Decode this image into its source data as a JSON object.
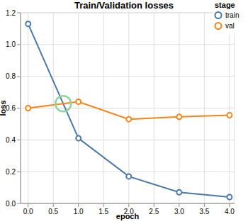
{
  "chart_data": {
    "type": "line",
    "title": "Train/Validation losses",
    "x_label": "epoch",
    "y_label": "loss",
    "legend_title": "stage",
    "x": [
      0,
      1,
      2,
      3,
      4
    ],
    "series": [
      {
        "name": "train",
        "color": "#4c78a8",
        "values": [
          1.13,
          0.41,
          0.17,
          0.07,
          0.04
        ]
      },
      {
        "name": "val",
        "color": "#f58518",
        "values": [
          0.6,
          0.64,
          0.53,
          0.545,
          0.555
        ]
      }
    ],
    "xlim": [
      -0.15,
      4.1
    ],
    "xticks": [
      {
        "value": 0,
        "label": "0.0"
      },
      0.5,
      {
        "value": 1,
        "label": "1.0"
      },
      1.5,
      {
        "value": 2,
        "label": "2.0"
      },
      2.5,
      {
        "value": 3,
        "label": "3.0"
      },
      3.5,
      {
        "value": 4,
        "label": "4.0"
      }
    ],
    "ylim": [
      0,
      1.2
    ],
    "yticks": [
      {
        "value": 0,
        "label": "0.0"
      },
      0.2,
      0.4,
      0.6,
      0.8,
      {
        "value": 1,
        "label": "1.0"
      },
      1.2
    ],
    "grid": true,
    "legend": "top-right",
    "marker": "circle"
  }
}
